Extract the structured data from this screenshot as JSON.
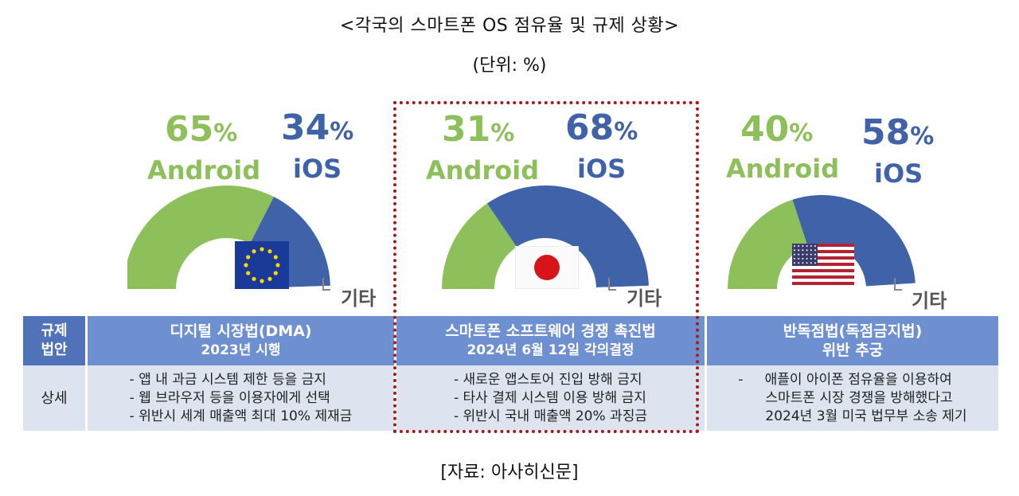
{
  "title": "<각국의 스마트폰 OS 점유율 및 규제 상황>",
  "unit": "(단위: %)",
  "source": "[자료: 아사히신문]",
  "colors": {
    "android": "#8dc05a",
    "ios": "#3f62a8",
    "other": "#ffffff",
    "header": "#6e8fd0",
    "header_label": "#4f72b8",
    "detail": "#dde3ef",
    "highlight": "#a31b1b"
  },
  "chart_data": [
    {
      "type": "pie",
      "region_flag": "eu-flag",
      "series": [
        {
          "name": "Android",
          "value": 65
        },
        {
          "name": "iOS",
          "value": 34
        },
        {
          "name": "기타",
          "value": 1
        }
      ]
    },
    {
      "type": "pie",
      "region_flag": "japan-flag",
      "series": [
        {
          "name": "Android",
          "value": 31
        },
        {
          "name": "iOS",
          "value": 68
        },
        {
          "name": "기타",
          "value": 1
        }
      ]
    },
    {
      "type": "pie",
      "region_flag": "us-flag",
      "series": [
        {
          "name": "Android",
          "value": 40
        },
        {
          "name": "iOS",
          "value": 58
        },
        {
          "name": "기타",
          "value": 2
        }
      ]
    }
  ],
  "labels": {
    "android": "Android",
    "ios": "iOS",
    "other": "기타",
    "percent_sign": "%"
  },
  "panels": [
    {
      "android_pct": "65",
      "ios_pct": "34"
    },
    {
      "android_pct": "31",
      "ios_pct": "68"
    },
    {
      "android_pct": "40",
      "ios_pct": "58"
    }
  ],
  "table": {
    "row1_label": [
      "규제",
      "법안"
    ],
    "row2_label": "상세",
    "columns": [
      {
        "header": [
          "디지털 시장법(DMA)",
          "2023년 시행"
        ],
        "details": [
          "- 앱 내 과금 시스템 제한 등을 금지",
          "- 웹 브라우저 등을 이용자에게 선택",
          "- 위반시 세계 매출액 최대 10% 제재금"
        ]
      },
      {
        "header": [
          "스마트폰 소프트웨어 경쟁 촉진법",
          "2024년 6월 12일 각의결정"
        ],
        "details": [
          "- 새로운 앱스토어 진입 방해 금지",
          "- 타사 결제 시스템 이용 방해 금지",
          "- 위반시 국내 매출액 20% 과징금"
        ]
      },
      {
        "header": [
          "반독점법(독점금지법)",
          "위반 추궁"
        ],
        "details": [
          "-     애플이 아이폰 점유율을 이용하여",
          "스마트폰 시장 경쟁을 방해했다고",
          "2024년 3월 미국 법무부 소송 제기"
        ]
      }
    ]
  }
}
